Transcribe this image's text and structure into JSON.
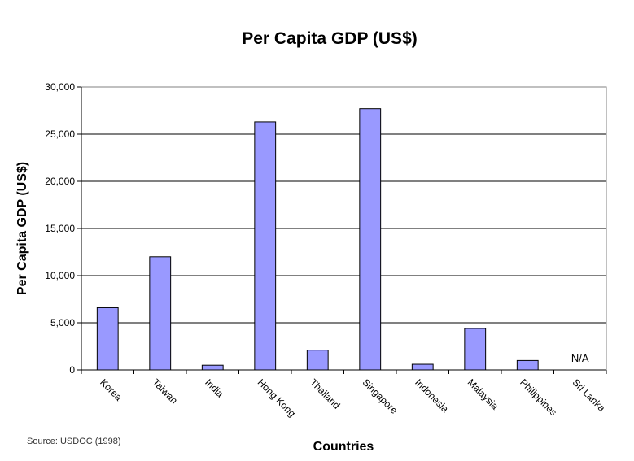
{
  "chart_data": {
    "type": "bar",
    "title": "Per Capita GDP (US$)",
    "xlabel": "Countries",
    "ylabel": "Per Capita GDP (US$)",
    "ylim": [
      0,
      30000
    ],
    "yticks": [
      0,
      5000,
      10000,
      15000,
      20000,
      25000,
      30000
    ],
    "ytick_labels": [
      "0",
      "5,000",
      "10,000",
      "15,000",
      "20,000",
      "25,000",
      "30,000"
    ],
    "grid": "horizontal",
    "categories": [
      "Korea",
      "Taiwan",
      "India",
      "Hong Kong",
      "Thailand",
      "Singapore",
      "Indonesia",
      "Malaysia",
      "Philippines",
      "Sri Lanka"
    ],
    "values": [
      6600,
      12000,
      500,
      26300,
      2100,
      27700,
      600,
      4400,
      1000,
      null
    ],
    "missing_label": "N/A",
    "bar_color": "#9999ff",
    "background": "#ffffff",
    "source": "Source: USDOC (1998)"
  }
}
